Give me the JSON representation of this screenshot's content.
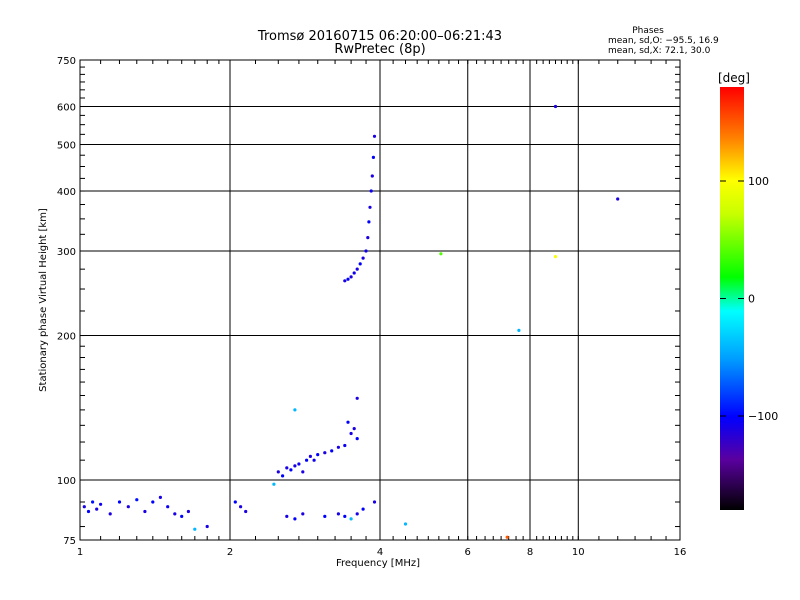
{
  "chart_data": {
    "type": "scatter",
    "title": "Tromsø 20160715 06:20:00–06:21:43",
    "subtitle": "RwPretec (8p)",
    "xlabel": "Frequency [MHz]",
    "ylabel": "Stationary phase Virtual Height [km]",
    "x_scale": "log",
    "y_scale": "log",
    "xlim": [
      1,
      16
    ],
    "ylim": [
      75,
      750
    ],
    "x_ticks": [
      "1",
      "2",
      "4",
      "6",
      "8",
      "10",
      "16"
    ],
    "y_ticks": [
      "75",
      "100",
      "200",
      "300",
      "400",
      "500",
      "600",
      "750"
    ],
    "grid": true,
    "phases_box": {
      "title": "Phases",
      "line1": "mean, sd,O: −95.5, 16.9",
      "line2": "mean, sd,X:  72.1, 30.0"
    },
    "colorbar": {
      "label": "[deg]",
      "ticks": [
        "100",
        "0",
        "−100"
      ],
      "tick_values": [
        100,
        0,
        -100
      ],
      "range": [
        -180,
        180
      ]
    },
    "series": [
      {
        "points": [
          [
            1.02,
            88,
            -110
          ],
          [
            1.04,
            86,
            -100
          ],
          [
            1.06,
            90,
            -95
          ],
          [
            1.08,
            87,
            -110
          ],
          [
            1.1,
            89,
            -105
          ],
          [
            1.15,
            85,
            -110
          ],
          [
            1.2,
            90,
            -100
          ],
          [
            1.25,
            88,
            -110
          ],
          [
            1.3,
            91,
            -95
          ],
          [
            1.35,
            86,
            -110
          ],
          [
            1.4,
            90,
            -100
          ],
          [
            1.45,
            92,
            -110
          ],
          [
            1.5,
            88,
            -105
          ],
          [
            1.55,
            85,
            -110
          ],
          [
            1.6,
            84,
            -100
          ],
          [
            1.65,
            86,
            -110
          ],
          [
            1.7,
            79,
            -40
          ],
          [
            1.8,
            80,
            -110
          ],
          [
            2.05,
            90,
            -100
          ],
          [
            2.1,
            88,
            -110
          ],
          [
            2.15,
            86,
            -110
          ],
          [
            2.5,
            104,
            -110
          ],
          [
            2.55,
            102,
            -100
          ],
          [
            2.6,
            106,
            -110
          ],
          [
            2.65,
            105,
            -100
          ],
          [
            2.7,
            107,
            -110
          ],
          [
            2.75,
            108,
            -105
          ],
          [
            2.8,
            104,
            -110
          ],
          [
            2.85,
            110,
            -100
          ],
          [
            2.9,
            112,
            -110
          ],
          [
            2.95,
            110,
            -105
          ],
          [
            3.0,
            113,
            -100
          ],
          [
            3.1,
            114,
            -110
          ],
          [
            3.2,
            115,
            -100
          ],
          [
            3.3,
            117,
            -110
          ],
          [
            3.4,
            118,
            -105
          ],
          [
            3.5,
            125,
            -110
          ],
          [
            3.6,
            122,
            -100
          ],
          [
            3.55,
            128,
            -110
          ],
          [
            3.45,
            132,
            -100
          ],
          [
            3.6,
            148,
            -110
          ],
          [
            2.7,
            140,
            -40
          ],
          [
            2.6,
            84,
            -110
          ],
          [
            2.7,
            83,
            -100
          ],
          [
            2.8,
            85,
            -110
          ],
          [
            3.1,
            84,
            -100
          ],
          [
            3.3,
            85,
            -110
          ],
          [
            3.4,
            84,
            -100
          ],
          [
            3.5,
            83,
            -40
          ],
          [
            3.6,
            85,
            -110
          ],
          [
            3.7,
            87,
            -100
          ],
          [
            3.9,
            90,
            -110
          ],
          [
            4.5,
            81,
            -40
          ],
          [
            2.45,
            98,
            -40
          ],
          [
            3.4,
            260,
            -110
          ],
          [
            3.45,
            262,
            -100
          ],
          [
            3.5,
            265,
            -110
          ],
          [
            3.55,
            270,
            -105
          ],
          [
            3.6,
            275,
            -110
          ],
          [
            3.65,
            282,
            -100
          ],
          [
            3.7,
            290,
            -110
          ],
          [
            3.75,
            300,
            -105
          ],
          [
            3.78,
            320,
            -110
          ],
          [
            3.8,
            345,
            -100
          ],
          [
            3.82,
            370,
            -110
          ],
          [
            3.84,
            400,
            -105
          ],
          [
            3.86,
            430,
            -110
          ],
          [
            3.88,
            470,
            -100
          ],
          [
            3.9,
            520,
            -110
          ],
          [
            5.3,
            296,
            40
          ],
          [
            7.6,
            205,
            -40
          ],
          [
            9.0,
            600,
            -110
          ],
          [
            9.0,
            292,
            100
          ],
          [
            12.0,
            385,
            -110
          ],
          [
            7.2,
            76,
            150
          ]
        ]
      }
    ]
  }
}
